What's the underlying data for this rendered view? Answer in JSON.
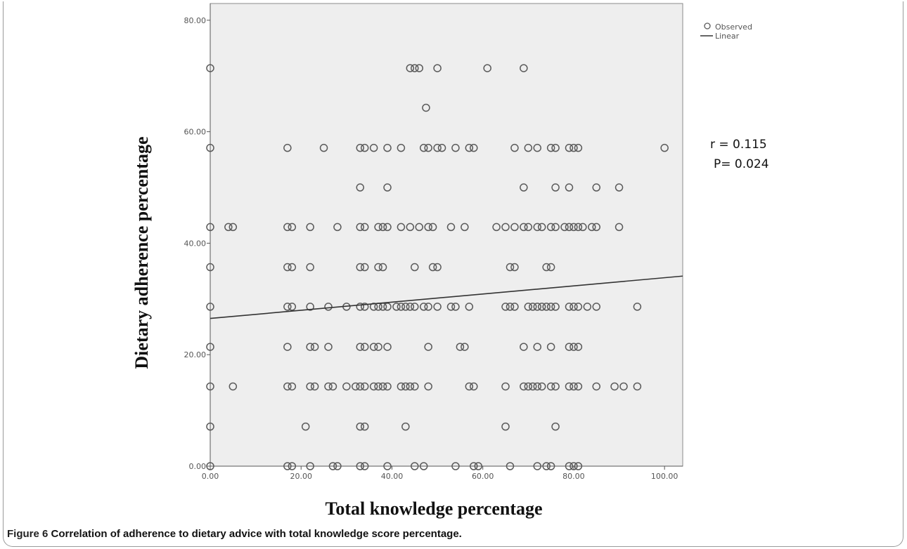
{
  "figure": {
    "label": "Figure 6",
    "caption": "Correlation of adherence to dietary advice with total knowledge score percentage."
  },
  "colors": {
    "plot_bg": "#eeeeee",
    "marker": "#5a5a5a",
    "line": "#333333"
  },
  "chart_data": {
    "type": "scatter",
    "xlabel": "Total knowledge percentage",
    "ylabel": "Dietary adherence percentage",
    "xlim": [
      0,
      104
    ],
    "ylim": [
      0,
      83
    ],
    "xticks": [
      0,
      20,
      40,
      60,
      80,
      100
    ],
    "xtick_labels": [
      "0.00",
      "20.00",
      "40.00",
      "60.00",
      "80.00",
      "100.00"
    ],
    "yticks": [
      0,
      20,
      40,
      60,
      80
    ],
    "ytick_labels": [
      "0.00",
      "20.00",
      "40.00",
      "60.00",
      "80.00"
    ],
    "grid": false,
    "legend": {
      "position": "top-right",
      "entries": [
        "Observed",
        "Linear"
      ]
    },
    "annotations": [
      "r = 0.115",
      "P= 0.024"
    ],
    "series": [
      {
        "name": "Observed",
        "type": "scatter",
        "points": [
          [
            0,
            71.4
          ],
          [
            44,
            71.4
          ],
          [
            45,
            71.4
          ],
          [
            46,
            71.4
          ],
          [
            50,
            71.4
          ],
          [
            61,
            71.4
          ],
          [
            69,
            71.4
          ],
          [
            47.5,
            64.3
          ],
          [
            0,
            57.1
          ],
          [
            17,
            57.1
          ],
          [
            25,
            57.1
          ],
          [
            33,
            57.1
          ],
          [
            34,
            57.1
          ],
          [
            36,
            57.1
          ],
          [
            39,
            57.1
          ],
          [
            42,
            57.1
          ],
          [
            47,
            57.1
          ],
          [
            48,
            57.1
          ],
          [
            50,
            57.1
          ],
          [
            51,
            57.1
          ],
          [
            54,
            57.1
          ],
          [
            57,
            57.1
          ],
          [
            58,
            57.1
          ],
          [
            67,
            57.1
          ],
          [
            70,
            57.1
          ],
          [
            72,
            57.1
          ],
          [
            75,
            57.1
          ],
          [
            76,
            57.1
          ],
          [
            79,
            57.1
          ],
          [
            80,
            57.1
          ],
          [
            81,
            57.1
          ],
          [
            100,
            57.1
          ],
          [
            33,
            50
          ],
          [
            39,
            50
          ],
          [
            69,
            50
          ],
          [
            76,
            50
          ],
          [
            79,
            50
          ],
          [
            85,
            50
          ],
          [
            90,
            50
          ],
          [
            0,
            42.9
          ],
          [
            4,
            42.9
          ],
          [
            5,
            42.9
          ],
          [
            17,
            42.9
          ],
          [
            18,
            42.9
          ],
          [
            22,
            42.9
          ],
          [
            28,
            42.9
          ],
          [
            33,
            42.9
          ],
          [
            34,
            42.9
          ],
          [
            37,
            42.9
          ],
          [
            38,
            42.9
          ],
          [
            39,
            42.9
          ],
          [
            42,
            42.9
          ],
          [
            44,
            42.9
          ],
          [
            46,
            42.9
          ],
          [
            48,
            42.9
          ],
          [
            49,
            42.9
          ],
          [
            53,
            42.9
          ],
          [
            56,
            42.9
          ],
          [
            63,
            42.9
          ],
          [
            65,
            42.9
          ],
          [
            67,
            42.9
          ],
          [
            69,
            42.9
          ],
          [
            70,
            42.9
          ],
          [
            72,
            42.9
          ],
          [
            73,
            42.9
          ],
          [
            75,
            42.9
          ],
          [
            76,
            42.9
          ],
          [
            78,
            42.9
          ],
          [
            79,
            42.9
          ],
          [
            80,
            42.9
          ],
          [
            81,
            42.9
          ],
          [
            82,
            42.9
          ],
          [
            84,
            42.9
          ],
          [
            85,
            42.9
          ],
          [
            90,
            42.9
          ],
          [
            0,
            35.7
          ],
          [
            17,
            35.7
          ],
          [
            18,
            35.7
          ],
          [
            22,
            35.7
          ],
          [
            33,
            35.7
          ],
          [
            34,
            35.7
          ],
          [
            37,
            35.7
          ],
          [
            38,
            35.7
          ],
          [
            45,
            35.7
          ],
          [
            49,
            35.7
          ],
          [
            50,
            35.7
          ],
          [
            66,
            35.7
          ],
          [
            67,
            35.7
          ],
          [
            74,
            35.7
          ],
          [
            75,
            35.7
          ],
          [
            0,
            28.6
          ],
          [
            17,
            28.6
          ],
          [
            18,
            28.6
          ],
          [
            22,
            28.6
          ],
          [
            26,
            28.6
          ],
          [
            30,
            28.6
          ],
          [
            33,
            28.6
          ],
          [
            34,
            28.6
          ],
          [
            36,
            28.6
          ],
          [
            37,
            28.6
          ],
          [
            38,
            28.6
          ],
          [
            39,
            28.6
          ],
          [
            41,
            28.6
          ],
          [
            42,
            28.6
          ],
          [
            43,
            28.6
          ],
          [
            44,
            28.6
          ],
          [
            45,
            28.6
          ],
          [
            47,
            28.6
          ],
          [
            48,
            28.6
          ],
          [
            50,
            28.6
          ],
          [
            53,
            28.6
          ],
          [
            54,
            28.6
          ],
          [
            57,
            28.6
          ],
          [
            65,
            28.6
          ],
          [
            66,
            28.6
          ],
          [
            67,
            28.6
          ],
          [
            70,
            28.6
          ],
          [
            71,
            28.6
          ],
          [
            72,
            28.6
          ],
          [
            73,
            28.6
          ],
          [
            74,
            28.6
          ],
          [
            75,
            28.6
          ],
          [
            76,
            28.6
          ],
          [
            79,
            28.6
          ],
          [
            80,
            28.6
          ],
          [
            81,
            28.6
          ],
          [
            83,
            28.6
          ],
          [
            85,
            28.6
          ],
          [
            94,
            28.6
          ],
          [
            0,
            21.4
          ],
          [
            17,
            21.4
          ],
          [
            22,
            21.4
          ],
          [
            23,
            21.4
          ],
          [
            26,
            21.4
          ],
          [
            33,
            21.4
          ],
          [
            34,
            21.4
          ],
          [
            36,
            21.4
          ],
          [
            37,
            21.4
          ],
          [
            39,
            21.4
          ],
          [
            48,
            21.4
          ],
          [
            55,
            21.4
          ],
          [
            56,
            21.4
          ],
          [
            69,
            21.4
          ],
          [
            72,
            21.4
          ],
          [
            75,
            21.4
          ],
          [
            79,
            21.4
          ],
          [
            80,
            21.4
          ],
          [
            81,
            21.4
          ],
          [
            0,
            14.3
          ],
          [
            5,
            14.3
          ],
          [
            17,
            14.3
          ],
          [
            18,
            14.3
          ],
          [
            22,
            14.3
          ],
          [
            23,
            14.3
          ],
          [
            26,
            14.3
          ],
          [
            27,
            14.3
          ],
          [
            30,
            14.3
          ],
          [
            32,
            14.3
          ],
          [
            33,
            14.3
          ],
          [
            34,
            14.3
          ],
          [
            36,
            14.3
          ],
          [
            37,
            14.3
          ],
          [
            38,
            14.3
          ],
          [
            39,
            14.3
          ],
          [
            42,
            14.3
          ],
          [
            43,
            14.3
          ],
          [
            44,
            14.3
          ],
          [
            45,
            14.3
          ],
          [
            48,
            14.3
          ],
          [
            57,
            14.3
          ],
          [
            58,
            14.3
          ],
          [
            65,
            14.3
          ],
          [
            69,
            14.3
          ],
          [
            70,
            14.3
          ],
          [
            71,
            14.3
          ],
          [
            72,
            14.3
          ],
          [
            73,
            14.3
          ],
          [
            75,
            14.3
          ],
          [
            76,
            14.3
          ],
          [
            79,
            14.3
          ],
          [
            80,
            14.3
          ],
          [
            81,
            14.3
          ],
          [
            85,
            14.3
          ],
          [
            89,
            14.3
          ],
          [
            91,
            14.3
          ],
          [
            94,
            14.3
          ],
          [
            0,
            7.1
          ],
          [
            21,
            7.1
          ],
          [
            33,
            7.1
          ],
          [
            34,
            7.1
          ],
          [
            43,
            7.1
          ],
          [
            65,
            7.1
          ],
          [
            76,
            7.1
          ],
          [
            0,
            0
          ],
          [
            17,
            0
          ],
          [
            18,
            0
          ],
          [
            22,
            0
          ],
          [
            27,
            0
          ],
          [
            28,
            0
          ],
          [
            33,
            0
          ],
          [
            34,
            0
          ],
          [
            39,
            0
          ],
          [
            45,
            0
          ],
          [
            47,
            0
          ],
          [
            54,
            0
          ],
          [
            58,
            0
          ],
          [
            59,
            0
          ],
          [
            66,
            0
          ],
          [
            72,
            0
          ],
          [
            74,
            0
          ],
          [
            75,
            0
          ],
          [
            79,
            0
          ],
          [
            80,
            0
          ],
          [
            81,
            0
          ]
        ]
      },
      {
        "name": "Linear",
        "type": "line",
        "points": [
          [
            0,
            26.5
          ],
          [
            104,
            34.1
          ]
        ]
      }
    ]
  }
}
